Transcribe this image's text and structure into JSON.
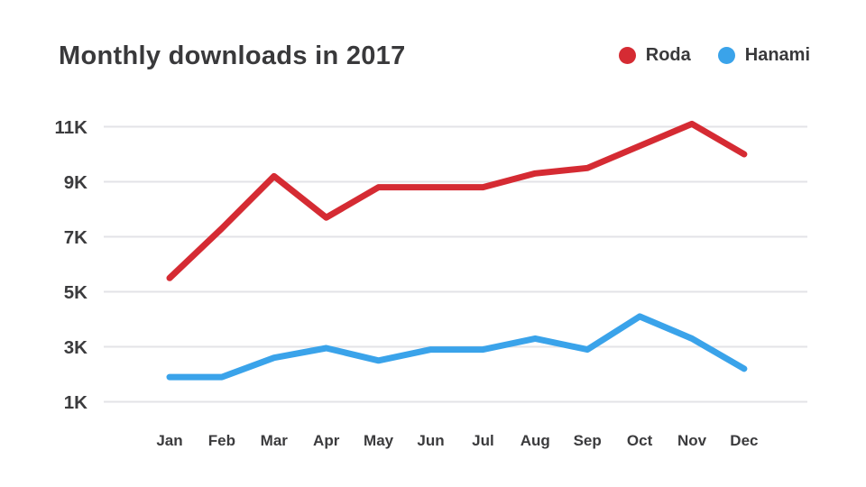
{
  "header": {
    "title": "Monthly downloads in 2017"
  },
  "legend": {
    "items": [
      {
        "label": "Roda",
        "color": "#d52b33"
      },
      {
        "label": "Hanami",
        "color": "#3aa3ea"
      }
    ]
  },
  "colors": {
    "grid": "#e3e3e7",
    "text": "#3b3b3d",
    "background": "#ffffff"
  },
  "chart_data": {
    "type": "line",
    "title": "Monthly downloads in 2017",
    "categories": [
      "Jan",
      "Feb",
      "Mar",
      "Apr",
      "May",
      "Jun",
      "Jul",
      "Aug",
      "Sep",
      "Oct",
      "Nov",
      "Dec"
    ],
    "series": [
      {
        "name": "Roda",
        "color": "#d52b33",
        "values": [
          5500,
          7300,
          9200,
          7700,
          8800,
          8800,
          8800,
          9300,
          9500,
          10300,
          11100,
          10000
        ]
      },
      {
        "name": "Hanami",
        "color": "#3aa3ea",
        "values": [
          1900,
          1900,
          2600,
          2950,
          2500,
          2900,
          2900,
          3300,
          2900,
          4100,
          3300,
          2200
        ]
      }
    ],
    "xlabel": "",
    "ylabel": "",
    "y_ticks": [
      {
        "label": "1K",
        "value": 1000
      },
      {
        "label": "3K",
        "value": 3000
      },
      {
        "label": "5K",
        "value": 5000
      },
      {
        "label": "7K",
        "value": 7000
      },
      {
        "label": "9K",
        "value": 9000
      },
      {
        "label": "11K",
        "value": 11000
      }
    ],
    "ylim": [
      1000,
      11300
    ],
    "grid": true,
    "legend_position": "top-right"
  }
}
